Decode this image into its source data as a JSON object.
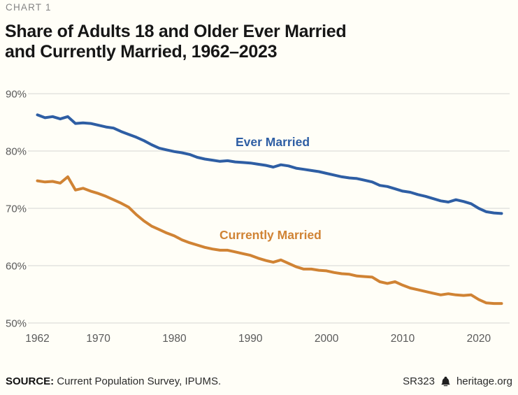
{
  "header": {
    "kicker": "CHART 1",
    "title_line1": "Share of Adults 18 and Older Ever Married",
    "title_line2": "and Currently Married, 1962–2023"
  },
  "footer": {
    "source_label": "SOURCE:",
    "source_text": " Current Population Survey, IPUMS.",
    "report_id": "SR323",
    "bell_icon": "heritage-liberty-bell",
    "site": "heritage.org"
  },
  "colors": {
    "ever_married": "#2E5EA4",
    "currently_married": "#D08334",
    "gridline": "#EAEAE5",
    "axis_text": "#5A5A5A",
    "background": "#FFFEF7"
  },
  "chart_data": {
    "type": "line",
    "title": "Share of Adults 18 and Older Ever Married and Currently Married, 1962–2023",
    "xlabel": "",
    "ylabel": "",
    "xlim": [
      1962,
      2023
    ],
    "ylim": [
      50,
      90
    ],
    "grid": "horizontal",
    "legend": "inline-labels",
    "xticks": [
      1962,
      1970,
      1980,
      1990,
      2000,
      2010,
      2020
    ],
    "yticks": [
      {
        "value": 90,
        "label": "90%"
      },
      {
        "value": 80,
        "label": "80%"
      },
      {
        "value": 70,
        "label": "70%"
      },
      {
        "value": 60,
        "label": "60%"
      },
      {
        "value": 50,
        "label": "50%"
      }
    ],
    "x": [
      1962,
      1963,
      1964,
      1965,
      1966,
      1967,
      1968,
      1969,
      1970,
      1971,
      1972,
      1973,
      1974,
      1975,
      1976,
      1977,
      1978,
      1979,
      1980,
      1981,
      1982,
      1983,
      1984,
      1985,
      1986,
      1987,
      1988,
      1989,
      1990,
      1991,
      1992,
      1993,
      1994,
      1995,
      1996,
      1997,
      1998,
      1999,
      2000,
      2001,
      2002,
      2003,
      2004,
      2005,
      2006,
      2007,
      2008,
      2009,
      2010,
      2011,
      2012,
      2013,
      2014,
      2015,
      2016,
      2017,
      2018,
      2019,
      2020,
      2021,
      2022,
      2023
    ],
    "series": [
      {
        "name": "Ever Married",
        "color": "#2E5EA4",
        "values": [
          86.3,
          85.8,
          86.0,
          85.6,
          86.0,
          84.8,
          84.9,
          84.8,
          84.5,
          84.2,
          84.0,
          83.4,
          82.9,
          82.4,
          81.8,
          81.1,
          80.5,
          80.2,
          79.9,
          79.7,
          79.4,
          78.9,
          78.6,
          78.4,
          78.2,
          78.3,
          78.1,
          78.0,
          77.9,
          77.7,
          77.5,
          77.2,
          77.6,
          77.4,
          77.0,
          76.8,
          76.6,
          76.4,
          76.1,
          75.8,
          75.5,
          75.3,
          75.2,
          74.9,
          74.6,
          74.0,
          73.8,
          73.4,
          73.0,
          72.8,
          72.4,
          72.1,
          71.7,
          71.3,
          71.1,
          71.5,
          71.2,
          70.8,
          70.0,
          69.4,
          69.2,
          69.1
        ]
      },
      {
        "name": "Currently Married",
        "color": "#D08334",
        "values": [
          74.8,
          74.6,
          74.7,
          74.4,
          75.5,
          73.2,
          73.5,
          73.0,
          72.6,
          72.1,
          71.5,
          70.9,
          70.2,
          68.9,
          67.8,
          66.9,
          66.3,
          65.7,
          65.2,
          64.5,
          64.0,
          63.6,
          63.2,
          62.9,
          62.7,
          62.7,
          62.4,
          62.1,
          61.8,
          61.3,
          60.9,
          60.6,
          61.0,
          60.4,
          59.8,
          59.4,
          59.4,
          59.2,
          59.1,
          58.8,
          58.6,
          58.5,
          58.2,
          58.1,
          58.0,
          57.2,
          56.9,
          57.2,
          56.6,
          56.1,
          55.8,
          55.5,
          55.2,
          54.9,
          55.1,
          54.9,
          54.8,
          54.9,
          54.1,
          53.5,
          53.4,
          53.4
        ]
      }
    ]
  }
}
